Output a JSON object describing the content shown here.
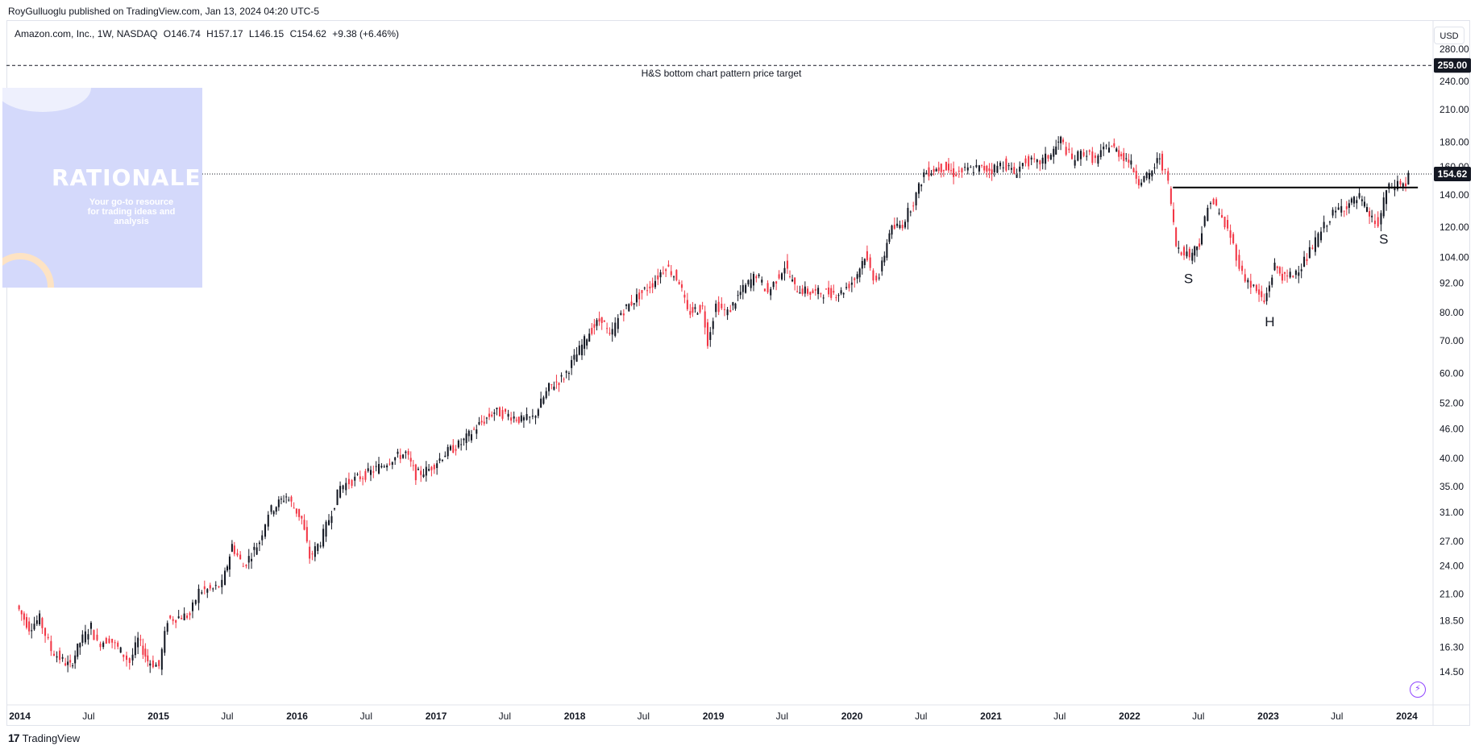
{
  "header": {
    "published": "RoyGulluoglu published on TradingView.com, Jan 13, 2024 04:20 UTC-5"
  },
  "symbol": {
    "name": "Amazon.com, Inc., 1W, NASDAQ",
    "open": "O146.74",
    "high": "H157.17",
    "low": "L146.15",
    "close": "C154.62",
    "change": "+9.38 (+6.46%)"
  },
  "currency": "USD",
  "footer": {
    "brand": "TradingView",
    "logo_mark": "17"
  },
  "watermark": {
    "title": "RATIONALE",
    "subtitle": "Your go-to resource for trading ideas and analysis"
  },
  "colors": {
    "up": "#131722",
    "down": "#f23645",
    "neckline": "#000000",
    "price_label_bg": "#131722",
    "price_label_text": "#ffffff",
    "grid": "#f0f3fa",
    "watermark_bg": "#d4d9fb"
  },
  "chart_data": {
    "type": "candlestick",
    "title": "",
    "scale": "log",
    "ylim": [
      12.5,
      320
    ],
    "xlim": [
      "2013-12-01",
      "2024-03-10"
    ],
    "y_ticks": [
      14.5,
      16.3,
      18.5,
      21.0,
      24.0,
      27.0,
      31.0,
      35.0,
      40.0,
      46.0,
      52.0,
      60.0,
      70.0,
      80.0,
      92.0,
      104.0,
      120.0,
      140.0,
      160.0,
      180.0,
      210.0,
      240.0,
      280.0
    ],
    "y_tick_labels": [
      "14.50",
      "16.30",
      "18.50",
      "21.00",
      "24.00",
      "27.00",
      "31.00",
      "35.00",
      "40.00",
      "46.00",
      "52.00",
      "60.00",
      "70.00",
      "80.00",
      "92.00",
      "104.00",
      "120.00",
      "140.00",
      "160.00",
      "180.00",
      "210.00",
      "240.00",
      "280.00"
    ],
    "x_ticks": [
      {
        "date": "2014-01-01",
        "label": "2014",
        "bold": true
      },
      {
        "date": "2014-07-01",
        "label": "Jul",
        "bold": false
      },
      {
        "date": "2015-01-01",
        "label": "2015",
        "bold": true
      },
      {
        "date": "2015-07-01",
        "label": "Jul",
        "bold": false
      },
      {
        "date": "2016-01-01",
        "label": "2016",
        "bold": true
      },
      {
        "date": "2016-07-01",
        "label": "Jul",
        "bold": false
      },
      {
        "date": "2017-01-01",
        "label": "2017",
        "bold": true
      },
      {
        "date": "2017-07-01",
        "label": "Jul",
        "bold": false
      },
      {
        "date": "2018-01-01",
        "label": "2018",
        "bold": true
      },
      {
        "date": "2018-07-01",
        "label": "Jul",
        "bold": false
      },
      {
        "date": "2019-01-01",
        "label": "2019",
        "bold": true
      },
      {
        "date": "2019-07-01",
        "label": "Jul",
        "bold": false
      },
      {
        "date": "2020-01-01",
        "label": "2020",
        "bold": true
      },
      {
        "date": "2020-07-01",
        "label": "Jul",
        "bold": false
      },
      {
        "date": "2021-01-01",
        "label": "2021",
        "bold": true
      },
      {
        "date": "2021-07-01",
        "label": "Jul",
        "bold": false
      },
      {
        "date": "2022-01-01",
        "label": "2022",
        "bold": true
      },
      {
        "date": "2022-07-01",
        "label": "Jul",
        "bold": false
      },
      {
        "date": "2023-01-01",
        "label": "2023",
        "bold": true
      },
      {
        "date": "2023-07-01",
        "label": "Jul",
        "bold": false
      },
      {
        "date": "2024-01-01",
        "label": "2024",
        "bold": true
      }
    ],
    "series": [
      {
        "interval": "1W",
        "points": [
          [
            "2013-12-30",
            19.9
          ],
          [
            "2014-02-01",
            17.9
          ],
          [
            "2014-03-01",
            18.7
          ],
          [
            "2014-04-01",
            16.1
          ],
          [
            "2014-05-01",
            15.3
          ],
          [
            "2014-05-20",
            14.9
          ],
          [
            "2014-06-15",
            16.7
          ],
          [
            "2014-07-15",
            18.0
          ],
          [
            "2014-08-01",
            16.6
          ],
          [
            "2014-09-01",
            17.0
          ],
          [
            "2014-10-01",
            16.0
          ],
          [
            "2014-10-25",
            15.2
          ],
          [
            "2014-11-15",
            16.9
          ],
          [
            "2014-12-10",
            15.3
          ],
          [
            "2015-01-10",
            14.9
          ],
          [
            "2015-02-01",
            18.6
          ],
          [
            "2015-03-10",
            18.9
          ],
          [
            "2015-04-01",
            19.0
          ],
          [
            "2015-04-25",
            21.3
          ],
          [
            "2015-06-01",
            21.5
          ],
          [
            "2015-06-25",
            22.0
          ],
          [
            "2015-07-20",
            26.5
          ],
          [
            "2015-08-20",
            24.0
          ],
          [
            "2015-10-01",
            27.0
          ],
          [
            "2015-10-25",
            31.0
          ],
          [
            "2015-12-10",
            33.5
          ],
          [
            "2016-01-20",
            30.0
          ],
          [
            "2016-02-10",
            25.0
          ],
          [
            "2016-03-10",
            27.0
          ],
          [
            "2016-04-01",
            30.0
          ],
          [
            "2016-05-01",
            35.0
          ],
          [
            "2016-06-01",
            36.0
          ],
          [
            "2016-07-20",
            37.5
          ],
          [
            "2016-09-15",
            40.0
          ],
          [
            "2016-10-20",
            41.0
          ],
          [
            "2016-11-15",
            37.0
          ],
          [
            "2016-12-20",
            38.0
          ],
          [
            "2017-02-01",
            41.0
          ],
          [
            "2017-03-15",
            43.0
          ],
          [
            "2017-05-01",
            47.0
          ],
          [
            "2017-06-10",
            50.0
          ],
          [
            "2017-07-25",
            49.0
          ],
          [
            "2017-08-20",
            48.0
          ],
          [
            "2017-09-20",
            48.5
          ],
          [
            "2017-11-01",
            56.0
          ],
          [
            "2017-12-10",
            59.0
          ],
          [
            "2018-01-20",
            67.0
          ],
          [
            "2018-02-15",
            73.0
          ],
          [
            "2018-03-20",
            78.0
          ],
          [
            "2018-04-10",
            71.0
          ],
          [
            "2018-05-10",
            80.0
          ],
          [
            "2018-06-20",
            86.0
          ],
          [
            "2018-08-01",
            92.0
          ],
          [
            "2018-09-05",
            100.0
          ],
          [
            "2018-10-10",
            93.0
          ],
          [
            "2018-11-01",
            80.0
          ],
          [
            "2018-12-10",
            82.0
          ],
          [
            "2018-12-24",
            70.0
          ],
          [
            "2019-01-15",
            83.0
          ],
          [
            "2019-02-15",
            80.0
          ],
          [
            "2019-03-20",
            88.0
          ],
          [
            "2019-05-01",
            96.0
          ],
          [
            "2019-06-01",
            88.0
          ],
          [
            "2019-07-15",
            100.0
          ],
          [
            "2019-08-10",
            90.0
          ],
          [
            "2019-09-20",
            88.0
          ],
          [
            "2019-10-25",
            88.0
          ],
          [
            "2019-12-10",
            88.0
          ],
          [
            "2020-01-15",
            94.0
          ],
          [
            "2020-02-10",
            105.0
          ],
          [
            "2020-03-05",
            95.0
          ],
          [
            "2020-03-20",
            95.0
          ],
          [
            "2020-04-15",
            118.0
          ],
          [
            "2020-05-20",
            122.0
          ],
          [
            "2020-06-25",
            140.0
          ],
          [
            "2020-07-15",
            155.0
          ],
          [
            "2020-08-10",
            158.0
          ],
          [
            "2020-09-05",
            160.0
          ],
          [
            "2020-10-01",
            155.0
          ],
          [
            "2020-11-01",
            157.0
          ],
          [
            "2020-12-01",
            159.0
          ],
          [
            "2021-01-10",
            158.0
          ],
          [
            "2021-02-10",
            163.0
          ],
          [
            "2021-03-10",
            155.0
          ],
          [
            "2021-04-10",
            165.0
          ],
          [
            "2021-05-10",
            162.0
          ],
          [
            "2021-06-15",
            170.0
          ],
          [
            "2021-07-10",
            182.0
          ],
          [
            "2021-08-10",
            165.0
          ],
          [
            "2021-09-10",
            172.0
          ],
          [
            "2021-10-10",
            165.0
          ],
          [
            "2021-11-15",
            178.0
          ],
          [
            "2021-12-10",
            171.0
          ],
          [
            "2022-01-05",
            165.0
          ],
          [
            "2022-02-01",
            150.0
          ],
          [
            "2022-03-01",
            153.0
          ],
          [
            "2022-03-28",
            168.0
          ],
          [
            "2022-04-20",
            148.0
          ],
          [
            "2022-05-10",
            110.0
          ],
          [
            "2022-06-15",
            105.0
          ],
          [
            "2022-07-10",
            112.0
          ],
          [
            "2022-08-10",
            138.0
          ],
          [
            "2022-09-01",
            128.0
          ],
          [
            "2022-10-01",
            115.0
          ],
          [
            "2022-11-01",
            96.0
          ],
          [
            "2022-12-01",
            90.0
          ],
          [
            "2022-12-28",
            84.0
          ],
          [
            "2023-01-25",
            100.0
          ],
          [
            "2023-02-20",
            94.0
          ],
          [
            "2023-03-15",
            96.0
          ],
          [
            "2023-04-20",
            104.0
          ],
          [
            "2023-05-20",
            115.0
          ],
          [
            "2023-06-20",
            126.0
          ],
          [
            "2023-07-20",
            132.0
          ],
          [
            "2023-08-15",
            135.0
          ],
          [
            "2023-09-05",
            138.0
          ],
          [
            "2023-10-01",
            127.0
          ],
          [
            "2023-10-25",
            121.0
          ],
          [
            "2023-11-15",
            143.0
          ],
          [
            "2023-12-15",
            148.0
          ],
          [
            "2024-01-05",
            146.74
          ],
          [
            "2024-01-12",
            154.62
          ]
        ]
      }
    ],
    "last_price": {
      "value": 154.62,
      "label": "154.62"
    },
    "target_line": {
      "value": 259.0,
      "label": "259.00",
      "text": "H&S bottom chart pattern price target"
    },
    "neckline": {
      "value": 145.0,
      "from": "2022-04-25",
      "to": "2024-01-30"
    },
    "annotations": [
      {
        "text": "S",
        "date": "2022-06-05",
        "value": 92.0
      },
      {
        "text": "H",
        "date": "2023-01-05",
        "value": 75.0
      },
      {
        "text": "S",
        "date": "2023-11-01",
        "value": 111.0
      }
    ]
  }
}
